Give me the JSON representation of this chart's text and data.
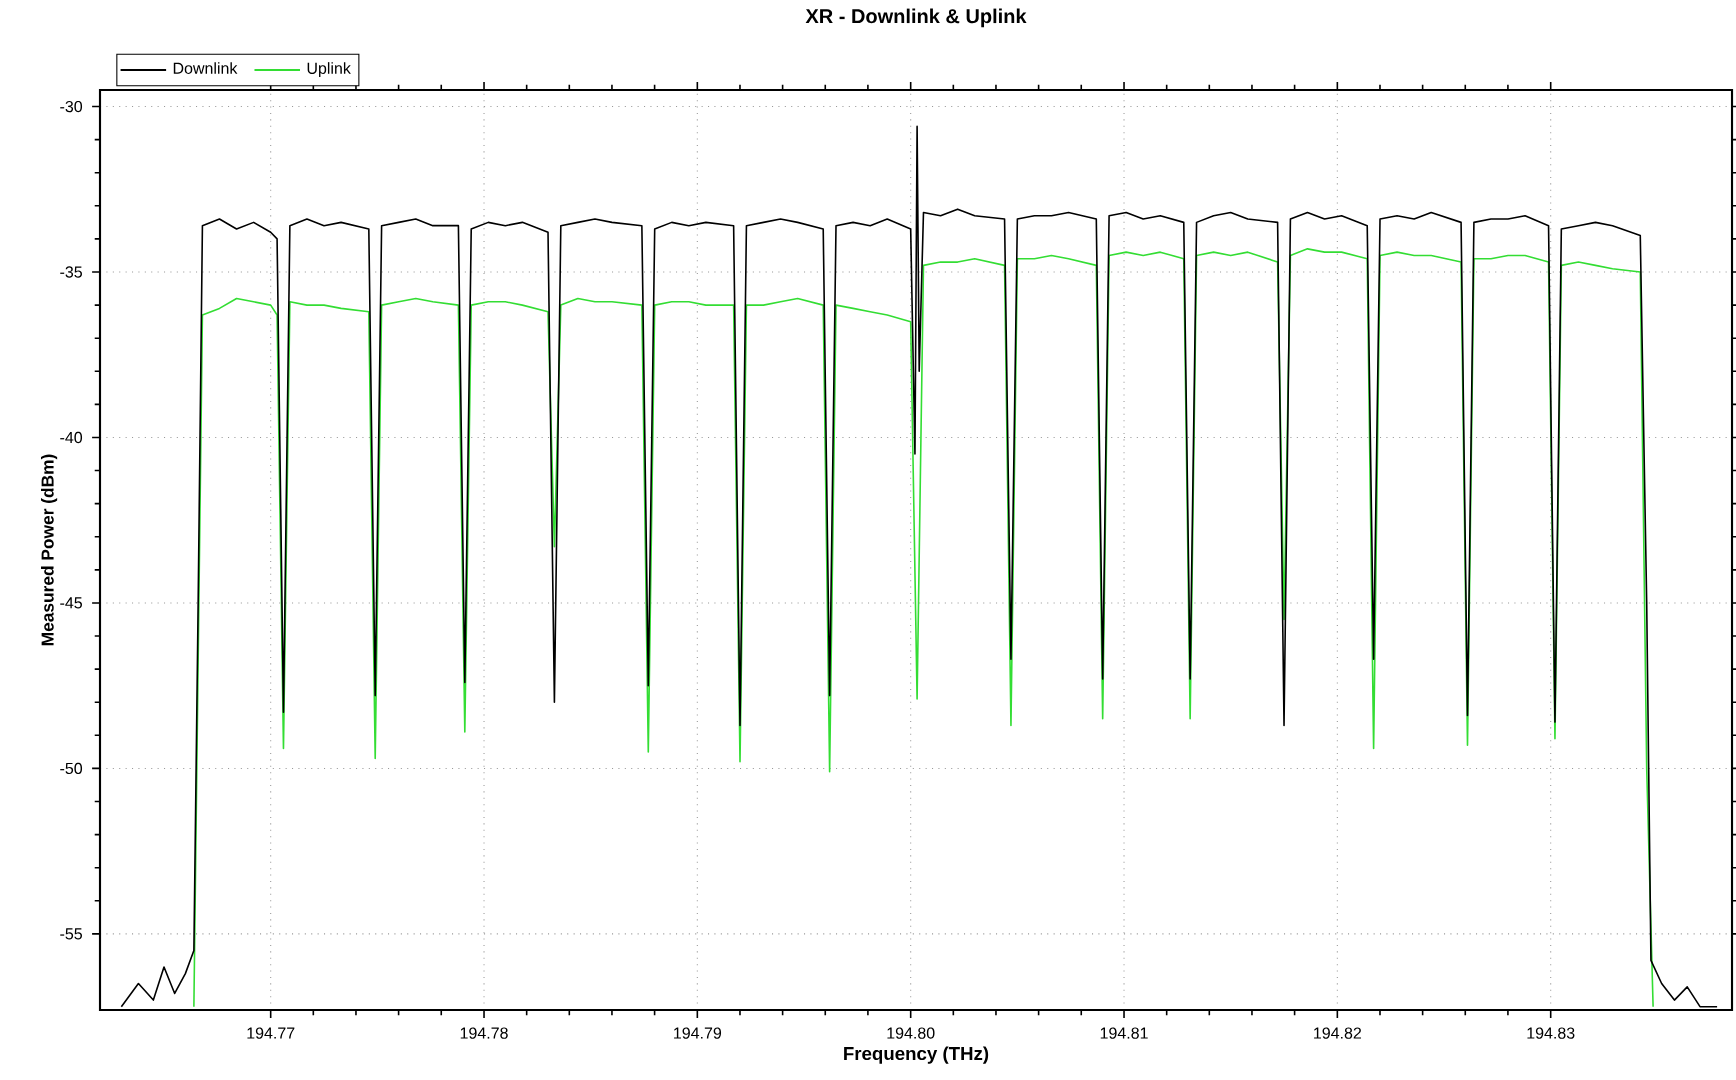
{
  "chart_data": {
    "type": "line",
    "title": "XR - Downlink & Uplink",
    "xlabel": "Frequency (THz)",
    "ylabel": "Measured Power (dBm)",
    "xlim": [
      194.762,
      194.8385
    ],
    "ylim": [
      -57.3,
      -29.5
    ],
    "xticks": [
      194.77,
      194.78,
      194.79,
      {
        "value": 194.8,
        "label": "194.80"
      },
      194.81,
      194.82,
      194.83
    ],
    "yticks": [
      -55,
      -50,
      -45,
      -40,
      -35,
      -30
    ],
    "grid": true,
    "legend": "top left",
    "marker": "none",
    "line_style": "solid",
    "series": [
      {
        "name": "Downlink",
        "color": "#000000",
        "x": [
          194.763,
          194.7638,
          194.7645,
          194.765,
          194.7655,
          194.766,
          194.7664,
          194.7666,
          194.7668,
          194.7676,
          194.7684,
          194.7692,
          194.77,
          194.7703,
          194.7706,
          194.7709,
          194.7717,
          194.7725,
          194.7733,
          194.7746,
          194.7749,
          194.7752,
          194.776,
          194.7768,
          194.7776,
          194.7788,
          194.7791,
          194.7794,
          194.7802,
          194.781,
          194.7818,
          194.783,
          194.7833,
          194.7836,
          194.7844,
          194.7852,
          194.786,
          194.7874,
          194.7877,
          194.788,
          194.7888,
          194.7896,
          194.7904,
          194.7917,
          194.792,
          194.7923,
          194.7931,
          194.7939,
          194.7947,
          194.7959,
          194.7962,
          194.7965,
          194.7973,
          194.7981,
          194.7989,
          194.8,
          194.8002,
          194.8003,
          194.8004,
          194.8006,
          194.8014,
          194.8022,
          194.803,
          194.8044,
          194.8047,
          194.805,
          194.8058,
          194.8066,
          194.8074,
          194.8087,
          194.809,
          194.8093,
          194.8101,
          194.8109,
          194.8117,
          194.8128,
          194.8131,
          194.8134,
          194.8142,
          194.815,
          194.8158,
          194.8172,
          194.8175,
          194.8178,
          194.8186,
          194.8194,
          194.8202,
          194.8214,
          194.8217,
          194.822,
          194.8228,
          194.8236,
          194.8244,
          194.8258,
          194.8261,
          194.8264,
          194.8272,
          194.828,
          194.8288,
          194.8299,
          194.8302,
          194.8305,
          194.8313,
          194.8321,
          194.8329,
          194.8342,
          194.8345,
          194.8347,
          194.8352,
          194.8358,
          194.8364,
          194.837,
          194.8378
        ],
        "values": [
          -57.2,
          -56.5,
          -57.0,
          -56.0,
          -56.8,
          -56.2,
          -55.5,
          -45,
          -33.6,
          -33.4,
          -33.7,
          -33.5,
          -33.8,
          -34.0,
          -48.3,
          -33.6,
          -33.4,
          -33.6,
          -33.5,
          -33.7,
          -47.8,
          -33.6,
          -33.5,
          -33.4,
          -33.6,
          -33.6,
          -47.4,
          -33.7,
          -33.5,
          -33.6,
          -33.5,
          -33.8,
          -48.0,
          -33.6,
          -33.5,
          -33.4,
          -33.5,
          -33.6,
          -47.5,
          -33.7,
          -33.5,
          -33.6,
          -33.5,
          -33.6,
          -48.7,
          -33.6,
          -33.5,
          -33.4,
          -33.5,
          -33.7,
          -47.8,
          -33.6,
          -33.5,
          -33.6,
          -33.4,
          -33.7,
          -40.5,
          -30.6,
          -38.0,
          -33.2,
          -33.3,
          -33.1,
          -33.3,
          -33.4,
          -46.7,
          -33.4,
          -33.3,
          -33.3,
          -33.2,
          -33.4,
          -47.3,
          -33.3,
          -33.2,
          -33.4,
          -33.3,
          -33.5,
          -47.3,
          -33.5,
          -33.3,
          -33.2,
          -33.4,
          -33.5,
          -48.7,
          -33.4,
          -33.2,
          -33.4,
          -33.3,
          -33.6,
          -46.7,
          -33.4,
          -33.3,
          -33.4,
          -33.2,
          -33.5,
          -48.4,
          -33.5,
          -33.4,
          -33.4,
          -33.3,
          -33.6,
          -48.6,
          -33.7,
          -33.6,
          -33.5,
          -33.6,
          -33.9,
          -45,
          -55.8,
          -56.5,
          -57.0,
          -56.6,
          -57.2,
          -57.2
        ]
      },
      {
        "name": "Uplink",
        "color": "#33dd33",
        "x": [
          194.7664,
          194.7668,
          194.7676,
          194.7684,
          194.7692,
          194.77,
          194.7703,
          194.7706,
          194.7709,
          194.7717,
          194.7725,
          194.7733,
          194.7746,
          194.7749,
          194.7752,
          194.776,
          194.7768,
          194.7776,
          194.7788,
          194.7791,
          194.7794,
          194.7802,
          194.781,
          194.7818,
          194.783,
          194.7833,
          194.7836,
          194.7844,
          194.7852,
          194.786,
          194.7874,
          194.7877,
          194.788,
          194.7888,
          194.7896,
          194.7904,
          194.7917,
          194.792,
          194.7923,
          194.7931,
          194.7939,
          194.7947,
          194.7959,
          194.7962,
          194.7965,
          194.7973,
          194.7981,
          194.7989,
          194.8,
          194.8003,
          194.8006,
          194.8014,
          194.8022,
          194.803,
          194.8044,
          194.8047,
          194.805,
          194.8058,
          194.8066,
          194.8074,
          194.8087,
          194.809,
          194.8093,
          194.8101,
          194.8109,
          194.8117,
          194.8128,
          194.8131,
          194.8134,
          194.8142,
          194.815,
          194.8158,
          194.8172,
          194.8175,
          194.8178,
          194.8186,
          194.8194,
          194.8202,
          194.8214,
          194.8217,
          194.822,
          194.8228,
          194.8236,
          194.8244,
          194.8258,
          194.8261,
          194.8264,
          194.8272,
          194.828,
          194.8288,
          194.8299,
          194.8302,
          194.8305,
          194.8313,
          194.8321,
          194.8329,
          194.8342,
          194.8345,
          194.8348
        ],
        "values": [
          -57.2,
          -36.3,
          -36.1,
          -35.8,
          -35.9,
          -36.0,
          -36.3,
          -49.4,
          -35.9,
          -36.0,
          -36.0,
          -36.1,
          -36.2,
          -49.7,
          -36.0,
          -35.9,
          -35.8,
          -35.9,
          -36.0,
          -48.9,
          -36.0,
          -35.9,
          -35.9,
          -36.0,
          -36.2,
          -43.3,
          -36.0,
          -35.8,
          -35.9,
          -35.9,
          -36.0,
          -49.5,
          -36.0,
          -35.9,
          -35.9,
          -36.0,
          -36.0,
          -49.8,
          -36.0,
          -36.0,
          -35.9,
          -35.8,
          -36.0,
          -50.1,
          -36.0,
          -36.1,
          -36.2,
          -36.3,
          -36.5,
          -47.9,
          -34.8,
          -34.7,
          -34.7,
          -34.6,
          -34.8,
          -48.7,
          -34.6,
          -34.6,
          -34.5,
          -34.6,
          -34.8,
          -48.5,
          -34.5,
          -34.4,
          -34.5,
          -34.4,
          -34.6,
          -48.5,
          -34.5,
          -34.4,
          -34.5,
          -34.4,
          -34.7,
          -45.5,
          -34.5,
          -34.3,
          -34.4,
          -34.4,
          -34.6,
          -49.4,
          -34.5,
          -34.4,
          -34.5,
          -34.5,
          -34.7,
          -49.3,
          -34.6,
          -34.6,
          -34.5,
          -34.5,
          -34.7,
          -49.1,
          -34.8,
          -34.7,
          -34.8,
          -34.9,
          -35.0,
          -50,
          -57.2
        ]
      }
    ]
  }
}
